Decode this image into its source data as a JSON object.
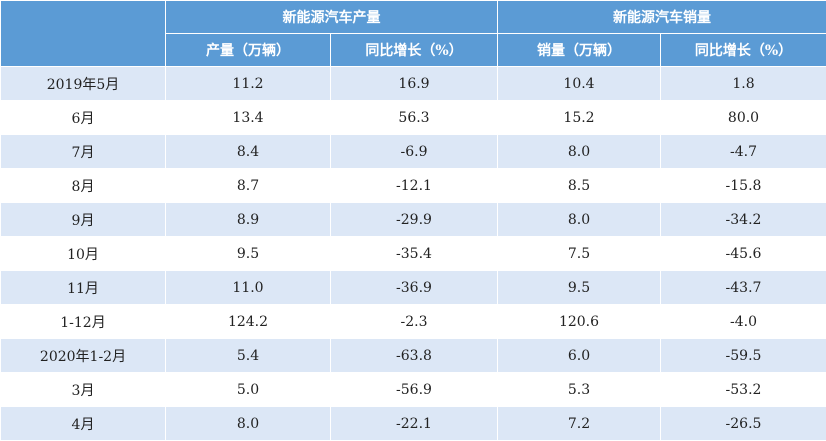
{
  "header": {
    "group_titles": [
      "新能源汽车产量",
      "新能源汽车销量"
    ],
    "columns": [
      "产量（万辆）",
      "同比增长（%）",
      "销量（万辆）",
      "同比增长（%）"
    ]
  },
  "table": {
    "rows": [
      [
        "2019年5月",
        "11.2",
        "16.9",
        "10.4",
        "1.8"
      ],
      [
        "6月",
        "13.4",
        "56.3",
        "15.2",
        "80.0"
      ],
      [
        "7月",
        "8.4",
        "-6.9",
        "8.0",
        "-4.7"
      ],
      [
        "8月",
        "8.7",
        "-12.1",
        "8.5",
        "-15.8"
      ],
      [
        "9月",
        "8.9",
        "-29.9",
        "8.0",
        "-34.2"
      ],
      [
        "10月",
        "9.5",
        "-35.4",
        "7.5",
        "-45.6"
      ],
      [
        "11月",
        "11.0",
        "-36.9",
        "9.5",
        "-43.7"
      ],
      [
        "1-12月",
        "124.2",
        "-2.3",
        "120.6",
        "-4.0"
      ],
      [
        "2020年1-2月",
        "5.4",
        "-63.8",
        "6.0",
        "-59.5"
      ],
      [
        "3月",
        "5.0",
        "-56.9",
        "5.3",
        "-53.2"
      ],
      [
        "4月",
        "8.0",
        "-22.1",
        "7.2",
        "-26.5"
      ]
    ]
  }
}
